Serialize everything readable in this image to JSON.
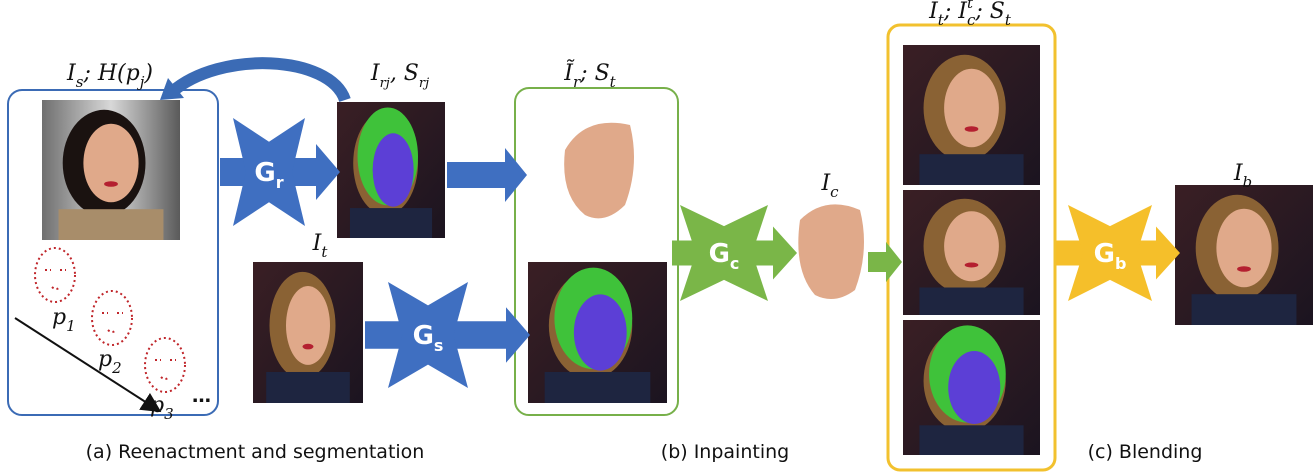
{
  "labels": {
    "source": [
      {
        "t": "I"
      },
      {
        "sub": "s"
      },
      {
        "t": "; H(p"
      },
      {
        "sub": "j"
      },
      {
        "t": ")"
      }
    ],
    "reenacted": [
      {
        "t": "I"
      },
      {
        "sub": "rj"
      },
      {
        "t": ", S"
      },
      {
        "sub": "rj"
      }
    ],
    "inpaint_input": [
      {
        "t": "Ĩ"
      },
      {
        "sub": "r"
      },
      {
        "t": "; S"
      },
      {
        "sub": "t"
      }
    ],
    "target": [
      {
        "t": "I"
      },
      {
        "sub": "t"
      }
    ],
    "completed": [
      {
        "t": "I"
      },
      {
        "sub": "c"
      }
    ],
    "blend_input": [
      {
        "t": "I"
      },
      {
        "sub": "t"
      },
      {
        "t": "; I"
      },
      {
        "sup": "t"
      },
      {
        "sub": "c"
      },
      {
        "t": "; S"
      },
      {
        "sub": "t"
      }
    ],
    "blended": [
      {
        "t": "I"
      },
      {
        "sub": "b"
      }
    ]
  },
  "generators": {
    "reenactment": [
      {
        "t": "G"
      },
      {
        "sub": "r"
      }
    ],
    "segmentation": [
      {
        "t": "G"
      },
      {
        "sub": "s"
      }
    ],
    "inpainting": [
      {
        "t": "G"
      },
      {
        "sub": "c"
      }
    ],
    "blending": [
      {
        "t": "G"
      },
      {
        "sub": "b"
      }
    ]
  },
  "poses": [
    [
      {
        "t": "p"
      },
      {
        "sub": "1"
      }
    ],
    [
      {
        "t": "p"
      },
      {
        "sub": "2"
      }
    ],
    [
      {
        "t": "p"
      },
      {
        "sub": "3"
      }
    ]
  ],
  "ellipsis": "…",
  "captions": [
    "(a) Reenactment and segmentation",
    "(b) Inpainting",
    "(c) Blending"
  ]
}
